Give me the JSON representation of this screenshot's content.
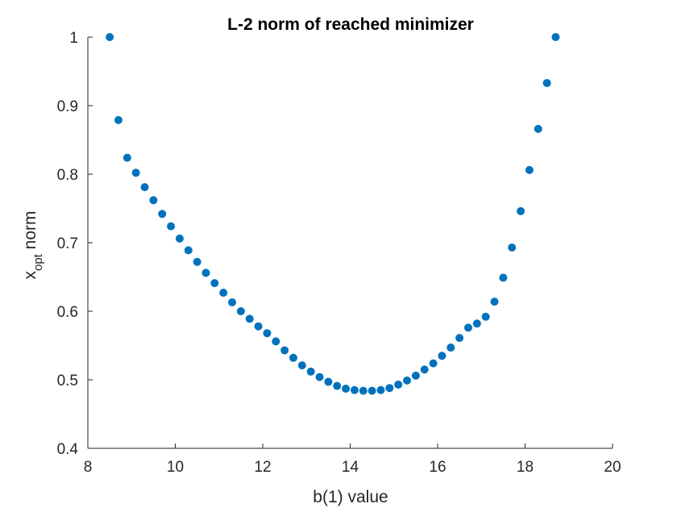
{
  "chart_data": {
    "type": "scatter",
    "title": "L-2 norm of reached minimizer",
    "xlabel": "b(1) value",
    "ylabel": {
      "main": "x",
      "subscript": "opt",
      "suffix": " norm"
    },
    "xlim": [
      8,
      20
    ],
    "ylim": [
      0.4,
      1.0
    ],
    "xticks": [
      8,
      10,
      12,
      14,
      16,
      18,
      20
    ],
    "yticks": [
      0.4,
      0.5,
      0.6,
      0.7,
      0.8,
      0.9,
      1.0
    ],
    "xtick_labels": [
      "8",
      "10",
      "12",
      "14",
      "16",
      "18",
      "20"
    ],
    "ytick_labels": [
      "0.4",
      "0.5",
      "0.6",
      "0.7",
      "0.8",
      "0.9",
      "1"
    ],
    "grid": false,
    "box": "left-bottom",
    "marker_color": "#0072BD",
    "x": [
      8.5,
      8.7,
      8.9,
      9.1,
      9.3,
      9.5,
      9.7,
      9.9,
      10.1,
      10.3,
      10.5,
      10.7,
      10.9,
      11.1,
      11.3,
      11.5,
      11.7,
      11.9,
      12.1,
      12.3,
      12.5,
      12.7,
      12.9,
      13.1,
      13.3,
      13.5,
      13.7,
      13.9,
      14.1,
      14.3,
      14.5,
      14.7,
      14.9,
      15.1,
      15.3,
      15.5,
      15.7,
      15.9,
      16.1,
      16.3,
      16.5,
      16.7,
      16.9,
      17.1,
      17.3,
      17.5,
      17.7,
      17.9,
      18.1,
      18.3,
      18.5,
      18.7
    ],
    "y": [
      1.0,
      0.879,
      0.824,
      0.802,
      0.781,
      0.762,
      0.742,
      0.724,
      0.706,
      0.689,
      0.672,
      0.656,
      0.641,
      0.627,
      0.613,
      0.6,
      0.589,
      0.578,
      0.568,
      0.556,
      0.543,
      0.532,
      0.521,
      0.512,
      0.504,
      0.497,
      0.491,
      0.487,
      0.485,
      0.484,
      0.484,
      0.485,
      0.488,
      0.493,
      0.499,
      0.506,
      0.515,
      0.524,
      0.535,
      0.547,
      0.561,
      0.576,
      0.582,
      0.592,
      0.614,
      0.649,
      0.693,
      0.746,
      0.806,
      0.866,
      0.933,
      1.0
    ]
  }
}
